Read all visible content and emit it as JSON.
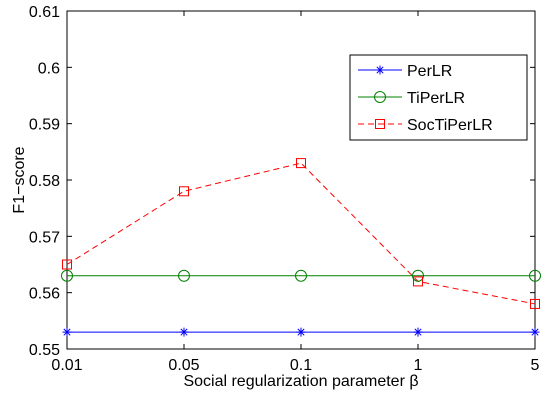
{
  "chart_data": {
    "type": "line",
    "xlabel": "Social regularization parameter β",
    "ylabel": "F1−score",
    "categories": [
      "0.01",
      "0.05",
      "0.1",
      "1",
      "5"
    ],
    "ylim": [
      0.55,
      0.61
    ],
    "yticks": [
      "0.55",
      "0.56",
      "0.57",
      "0.58",
      "0.59",
      "0.6",
      "0.61"
    ],
    "grid": false,
    "legend_position": "top-right",
    "series": [
      {
        "name": "PerLR",
        "values": [
          0.553,
          0.553,
          0.553,
          0.553,
          0.553
        ],
        "color": "#0000ff",
        "marker": "asterisk",
        "line": "solid"
      },
      {
        "name": "TiPerLR",
        "values": [
          0.563,
          0.563,
          0.563,
          0.563,
          0.563
        ],
        "color": "#008000",
        "marker": "circle",
        "line": "solid"
      },
      {
        "name": "SocTiPerLR",
        "values": [
          0.565,
          0.578,
          0.583,
          0.562,
          0.558
        ],
        "color": "#ff0000",
        "marker": "square",
        "line": "dashed"
      }
    ]
  }
}
